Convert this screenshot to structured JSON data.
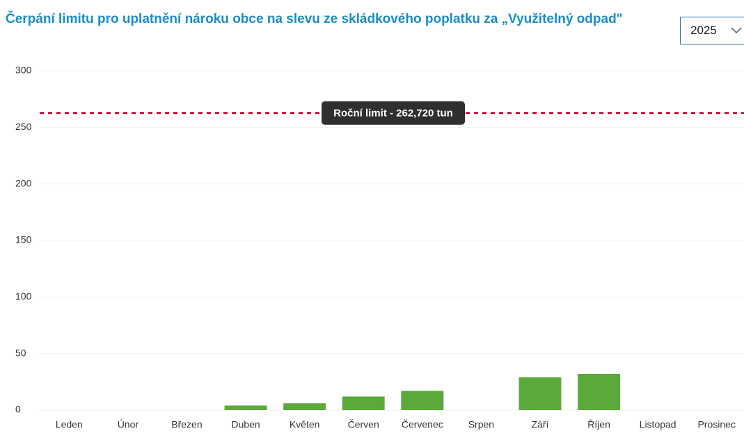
{
  "chart_data": {
    "type": "bar",
    "title": "Čerpání limitu pro uplatnění nároku obce na slevu ze skládkového poplatku za „Využitelný odpad\"",
    "selector": "2025",
    "categories": [
      "Leden",
      "Únor",
      "Březen",
      "Duben",
      "Květen",
      "Červen",
      "Červenec",
      "Srpen",
      "Září",
      "Říjen",
      "Listopad",
      "Prosinec"
    ],
    "values": [
      0,
      0,
      0,
      4,
      6,
      12,
      17,
      0,
      29,
      32,
      0,
      0
    ],
    "color": "#5ba83b",
    "ylim": [
      0,
      300
    ],
    "yticks": [
      0,
      50,
      100,
      150,
      200,
      250,
      300
    ],
    "grid": true,
    "limit": {
      "value": 262.72,
      "label": "Roční limit - 262,720 tun",
      "color": "#d0103a"
    }
  }
}
